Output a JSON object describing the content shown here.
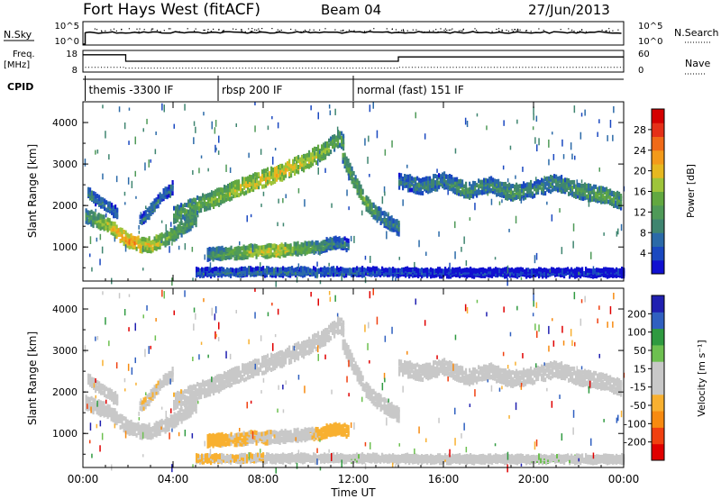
{
  "header": {
    "title": "Fort Hays West (fitACF)",
    "beam": "Beam 04",
    "date": "27/Jun/2013"
  },
  "top_panels": {
    "nsky": {
      "label": "N.Sky",
      "yticks": [
        "10^5",
        "10^0"
      ],
      "right_ticks": [
        "10^5",
        "10^0"
      ],
      "right_label": "N.Search"
    },
    "freq": {
      "label_line1": "Freq.",
      "label_line2": "[MHz]",
      "yticks": [
        "18",
        "8"
      ],
      "right_ticks": [
        "60",
        "0"
      ],
      "right_label": "Nave"
    },
    "cpid": {
      "label": "CPID",
      "segments": [
        {
          "name": "themis -3300 IF",
          "start_hour": 0.1,
          "end_hour": 6.0
        },
        {
          "name": "rbsp 200 IF",
          "start_hour": 6.0,
          "end_hour": 12.0
        },
        {
          "name": "normal (fast) 151 IF",
          "start_hour": 12.0,
          "end_hour": 24.0
        }
      ]
    },
    "freq_steps": [
      {
        "start_hour": 0.0,
        "end_hour": 1.9,
        "mhz": 16
      },
      {
        "start_hour": 1.9,
        "end_hour": 14.0,
        "mhz": 13
      },
      {
        "start_hour": 14.0,
        "end_hour": 24.0,
        "mhz": 15
      }
    ],
    "nave_level": 11
  },
  "x_axis": {
    "label": "Time UT",
    "ticks": [
      "00:00",
      "04:00",
      "08:00",
      "12:00",
      "16:00",
      "20:00",
      "00:00"
    ],
    "range_hours": [
      0,
      24
    ]
  },
  "chart_data": [
    {
      "type": "heatmap",
      "quantity": "Power",
      "ylabel": "Slant Range [km]",
      "ylim": [
        180,
        4500
      ],
      "yticks": [
        "4000",
        "3000",
        "2000",
        "1000"
      ],
      "colorbar": {
        "label": "Power [dB]",
        "ticks": [
          "28",
          "24",
          "20",
          "16",
          "12",
          "8",
          "4"
        ],
        "range": [
          0,
          32
        ],
        "colors": [
          "#1010d0",
          "#1a48c0",
          "#2b6aa8",
          "#3f8570",
          "#4f9a58",
          "#62a840",
          "#9ec43a",
          "#e6b820",
          "#f39a1a",
          "#f06a18",
          "#e53018",
          "#d40000"
        ]
      },
      "bands": [
        {
          "points": [
            [
              0.1,
              1750,
              12
            ],
            [
              0.5,
              1650,
              14
            ],
            [
              1.0,
              1550,
              18
            ],
            [
              1.5,
              1350,
              22
            ],
            [
              2.0,
              1150,
              24
            ],
            [
              2.5,
              1050,
              22
            ],
            [
              3.0,
              1050,
              20
            ],
            [
              3.5,
              1150,
              16
            ],
            [
              4.0,
              1300,
              14
            ],
            [
              4.5,
              1500,
              12
            ],
            [
              5.0,
              1700,
              12
            ]
          ],
          "width": 260
        },
        {
          "points": [
            [
              0.2,
              2300,
              10
            ],
            [
              0.5,
              2150,
              9
            ],
            [
              1.0,
              2000,
              9
            ],
            [
              1.5,
              1800,
              8
            ]
          ],
          "width": 200
        },
        {
          "points": [
            [
              2.5,
              1600,
              8
            ],
            [
              3.0,
              1900,
              9
            ],
            [
              3.5,
              2250,
              8
            ],
            [
              4.0,
              2450,
              8
            ]
          ],
          "width": 220
        },
        {
          "points": [
            [
              4.0,
              1750,
              12
            ],
            [
              5.0,
              2000,
              14
            ],
            [
              6.0,
              2200,
              16
            ],
            [
              7.0,
              2450,
              18
            ],
            [
              8.0,
              2650,
              20
            ],
            [
              9.0,
              2850,
              20
            ],
            [
              10.0,
              3100,
              18
            ],
            [
              10.8,
              3350,
              16
            ],
            [
              11.3,
              3600,
              14
            ],
            [
              11.6,
              3500,
              12
            ]
          ],
          "width": 320
        },
        {
          "points": [
            [
              11.5,
              3200,
              12
            ],
            [
              12.0,
              2600,
              14
            ],
            [
              12.5,
              2100,
              14
            ],
            [
              13.0,
              1800,
              12
            ],
            [
              13.5,
              1600,
              10
            ],
            [
              14.0,
              1450,
              9
            ]
          ],
          "width": 280
        },
        {
          "points": [
            [
              5.5,
              820,
              10
            ],
            [
              6.5,
              850,
              14
            ],
            [
              7.5,
              900,
              18
            ],
            [
              8.5,
              900,
              20
            ],
            [
              9.5,
              950,
              16
            ],
            [
              10.5,
              1000,
              12
            ],
            [
              11.0,
              1100,
              10
            ],
            [
              11.8,
              1050,
              8
            ]
          ],
          "width": 220
        },
        {
          "points": [
            [
              14.0,
              2600,
              8
            ],
            [
              15.0,
              2450,
              10
            ],
            [
              16.0,
              2600,
              9
            ],
            [
              17.0,
              2350,
              12
            ],
            [
              18.0,
              2500,
              10
            ],
            [
              19.0,
              2300,
              12
            ],
            [
              20.0,
              2400,
              10
            ],
            [
              21.0,
              2550,
              11
            ],
            [
              22.0,
              2350,
              12
            ],
            [
              23.0,
              2250,
              14
            ],
            [
              23.9,
              2100,
              12
            ]
          ],
          "width": 300
        },
        {
          "points": [
            [
              5.0,
              380,
              6
            ],
            [
              8.0,
              400,
              9
            ],
            [
              12.0,
              400,
              7
            ],
            [
              16.0,
              380,
              4
            ],
            [
              20.0,
              380,
              4
            ],
            [
              24.0,
              380,
              3
            ]
          ],
          "width": 130
        }
      ]
    },
    {
      "type": "heatmap",
      "quantity": "Velocity",
      "ylabel": "Slant Range [km]",
      "ylim": [
        180,
        4500
      ],
      "yticks": [
        "4000",
        "3000",
        "2000",
        "1000"
      ],
      "colorbar": {
        "label": "Velocity [m s⁻¹]",
        "ticks": [
          "200",
          "100",
          "50",
          "15",
          "-15",
          "-50",
          "-100",
          "-200"
        ],
        "range": [
          -250,
          250
        ],
        "colors": [
          "#e00000",
          "#f04010",
          "#f78a10",
          "#f8b030",
          "#c8c8c8",
          "#c8c8c8",
          "#6dc050",
          "#2f9a40",
          "#3060c0",
          "#2020b0"
        ]
      },
      "bands": [
        {
          "points": [
            [
              0.1,
              1750,
              -5
            ],
            [
              0.5,
              1650,
              0
            ],
            [
              1.0,
              1550,
              -10
            ],
            [
              1.5,
              1350,
              0
            ],
            [
              2.0,
              1150,
              5
            ],
            [
              2.5,
              1050,
              -5
            ],
            [
              3.0,
              1050,
              0
            ],
            [
              3.5,
              1150,
              -15
            ],
            [
              4.0,
              1300,
              -30
            ],
            [
              4.5,
              1500,
              -40
            ],
            [
              5.0,
              1700,
              -20
            ]
          ],
          "width": 260
        },
        {
          "points": [
            [
              0.2,
              2300,
              -5
            ],
            [
              0.5,
              2150,
              0
            ],
            [
              1.0,
              2000,
              5
            ],
            [
              1.5,
              1800,
              0
            ]
          ],
          "width": 200
        },
        {
          "points": [
            [
              2.5,
              1600,
              -40
            ],
            [
              3.0,
              1900,
              -50
            ],
            [
              3.5,
              2250,
              -30
            ],
            [
              4.0,
              2450,
              -20
            ]
          ],
          "width": 220
        },
        {
          "points": [
            [
              4.0,
              1750,
              -40
            ],
            [
              5.0,
              2000,
              -30
            ],
            [
              6.0,
              2200,
              -10
            ],
            [
              7.0,
              2450,
              0
            ],
            [
              8.0,
              2650,
              -5
            ],
            [
              9.0,
              2850,
              0
            ],
            [
              10.0,
              3100,
              -10
            ],
            [
              10.8,
              3350,
              -5
            ],
            [
              11.3,
              3600,
              0
            ],
            [
              11.6,
              3500,
              20
            ]
          ],
          "width": 320
        },
        {
          "points": [
            [
              11.5,
              3200,
              40
            ],
            [
              12.0,
              2600,
              30
            ],
            [
              12.5,
              2100,
              25
            ],
            [
              13.0,
              1800,
              20
            ],
            [
              13.5,
              1600,
              10
            ],
            [
              14.0,
              1450,
              0
            ]
          ],
          "width": 280
        },
        {
          "points": [
            [
              5.5,
              820,
              -70
            ],
            [
              6.5,
              850,
              -60
            ],
            [
              7.5,
              900,
              -50
            ],
            [
              8.5,
              900,
              -40
            ],
            [
              9.5,
              950,
              -10
            ],
            [
              10.5,
              1000,
              -60
            ],
            [
              11.0,
              1100,
              -80
            ],
            [
              11.8,
              1050,
              -60
            ]
          ],
          "width": 220
        },
        {
          "points": [
            [
              14.0,
              2600,
              0
            ],
            [
              15.0,
              2450,
              -5
            ],
            [
              16.0,
              2600,
              5
            ],
            [
              17.0,
              2350,
              0
            ],
            [
              18.0,
              2500,
              -5
            ],
            [
              19.0,
              2300,
              0
            ],
            [
              20.0,
              2400,
              5
            ],
            [
              21.0,
              2550,
              0
            ],
            [
              22.0,
              2350,
              -5
            ],
            [
              23.0,
              2250,
              0
            ],
            [
              23.9,
              2100,
              5
            ]
          ],
          "width": 300
        },
        {
          "points": [
            [
              5.0,
              380,
              -60
            ],
            [
              8.0,
              400,
              -40
            ],
            [
              12.0,
              400,
              40
            ],
            [
              16.0,
              380,
              -40
            ],
            [
              20.0,
              380,
              40
            ],
            [
              24.0,
              380,
              30
            ]
          ],
          "width": 130
        }
      ]
    }
  ]
}
